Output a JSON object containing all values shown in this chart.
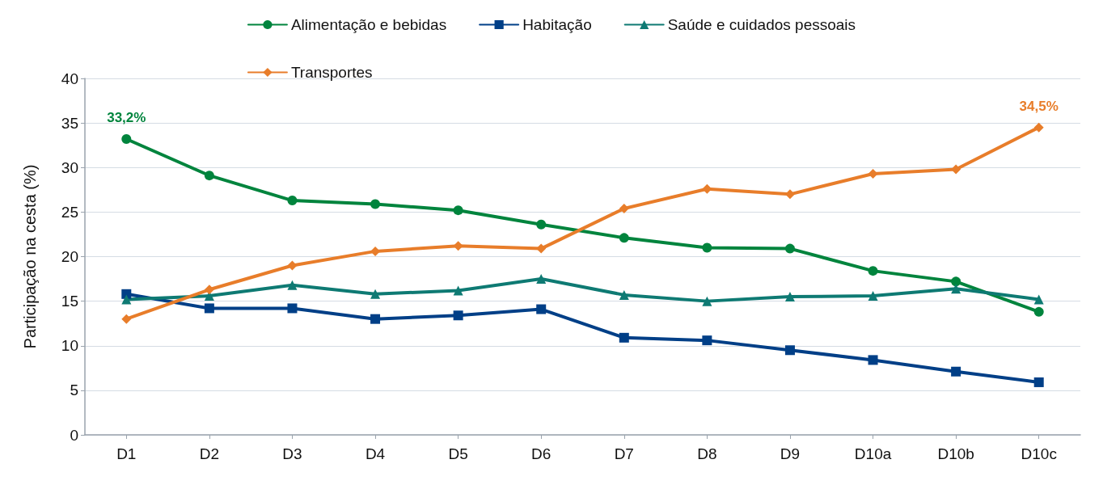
{
  "chart_data": {
    "type": "line",
    "ylabel": "Participação na cesta (%)",
    "categories": [
      "D1",
      "D2",
      "D3",
      "D4",
      "D5",
      "D6",
      "D7",
      "D8",
      "D9",
      "D10a",
      "D10b",
      "D10c"
    ],
    "series": [
      {
        "name": "Alimentação e bebidas",
        "color": "#00843d",
        "marker": "circle",
        "values": [
          33.2,
          29.1,
          26.3,
          25.9,
          25.2,
          23.6,
          22.1,
          21.0,
          20.9,
          18.4,
          17.2,
          13.8
        ],
        "value_labels": [
          "33,2%",
          null,
          null,
          null,
          null,
          null,
          null,
          null,
          null,
          null,
          null,
          null
        ]
      },
      {
        "name": "Habitação",
        "color": "#003f87",
        "marker": "square",
        "values": [
          15.8,
          14.2,
          14.2,
          13.0,
          13.4,
          14.1,
          10.9,
          10.6,
          9.5,
          8.4,
          7.1,
          5.9
        ]
      },
      {
        "name": "Saúde e cuidados pessoais",
        "color": "#0e7a73",
        "marker": "triangle",
        "values": [
          15.2,
          15.6,
          16.8,
          15.8,
          16.2,
          17.5,
          15.7,
          15.0,
          15.5,
          15.6,
          16.4,
          15.2
        ]
      },
      {
        "name": "Transportes",
        "color": "#e87d2a",
        "marker": "diamond",
        "values": [
          13.0,
          16.3,
          19.0,
          20.6,
          21.2,
          20.9,
          25.4,
          27.6,
          27.0,
          29.3,
          29.8,
          34.5
        ],
        "value_labels": [
          null,
          null,
          null,
          null,
          null,
          null,
          null,
          null,
          null,
          null,
          null,
          "34,5%"
        ]
      }
    ],
    "ylim": [
      0,
      40
    ],
    "yticks": [
      0,
      5,
      10,
      15,
      20,
      25,
      30,
      35,
      40
    ],
    "grid": "y",
    "legend": "top",
    "line_style": "solid"
  }
}
